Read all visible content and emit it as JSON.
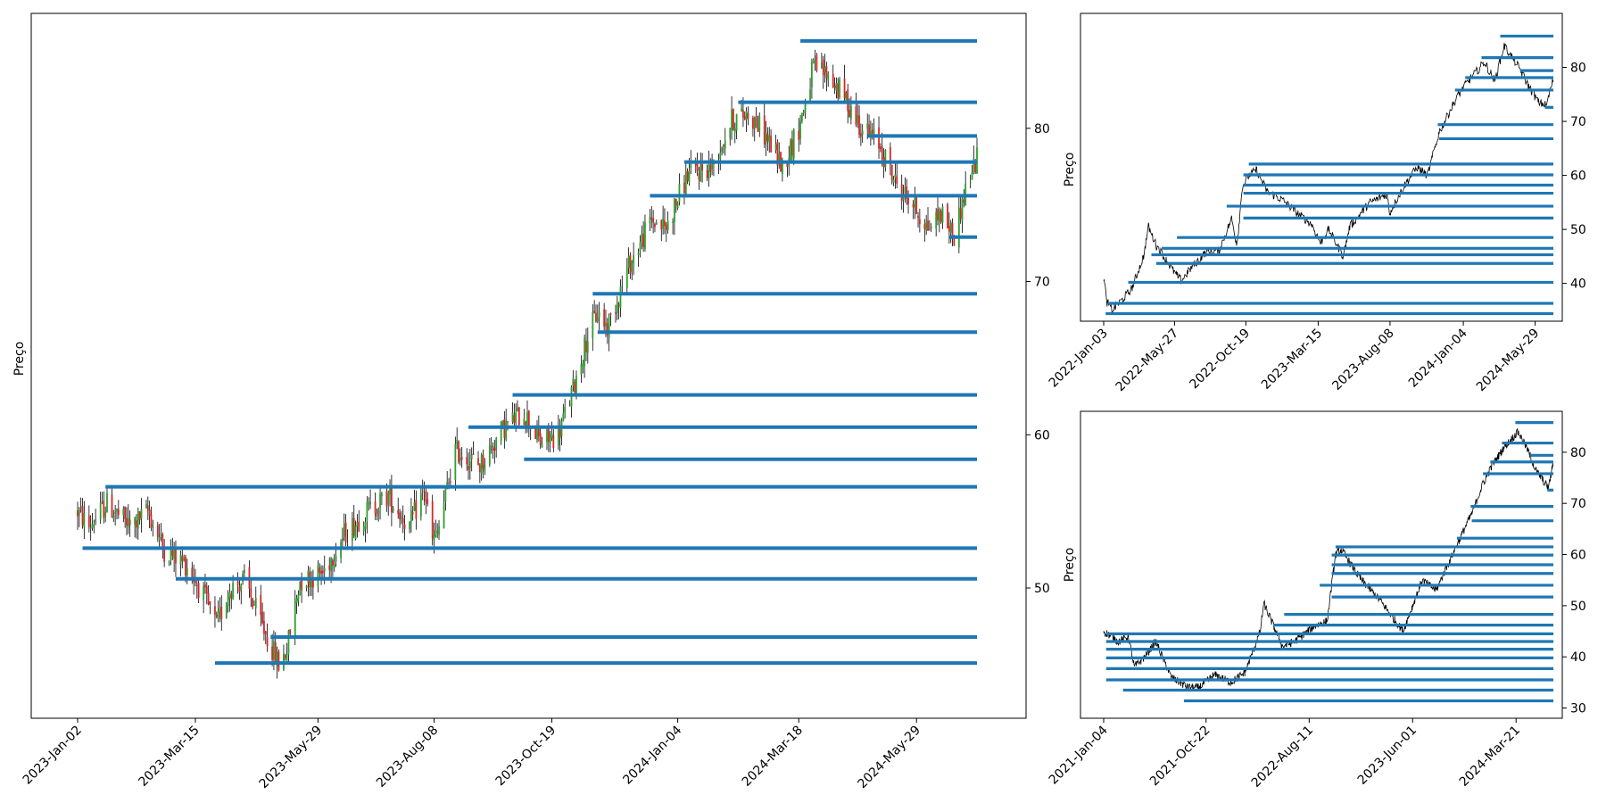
{
  "chart_data": [
    {
      "type": "candlestick",
      "ylabel": "Preço",
      "x_ticks": [
        "2023-Jan-02",
        "2023-Mar-15",
        "2023-May-29",
        "2023-Aug-08",
        "2023-Oct-19",
        "2024-Jan-04",
        "2024-Mar-18",
        "2024-May-29"
      ],
      "y_ticks": [
        50,
        60,
        70,
        80
      ],
      "ylim": [
        41.5,
        87.5
      ],
      "colors": {
        "up": "#2ca02c",
        "down": "#d62728",
        "levels": "#1f77b4"
      },
      "price_path": [
        [
          "2023-01-02",
          55.0
        ],
        [
          "2023-01-09",
          54.0
        ],
        [
          "2023-01-20",
          55.5
        ],
        [
          "2023-02-03",
          54.0
        ],
        [
          "2023-02-14",
          55.0
        ],
        [
          "2023-02-24",
          52.5
        ],
        [
          "2023-03-10",
          51.5
        ],
        [
          "2023-03-20",
          49.5
        ],
        [
          "2023-03-28",
          47.5
        ],
        [
          "2023-04-05",
          50.0
        ],
        [
          "2023-04-14",
          50.5
        ],
        [
          "2023-04-25",
          47.5
        ],
        [
          "2023-05-05",
          45.0
        ],
        [
          "2023-05-10",
          46.0
        ],
        [
          "2023-05-18",
          50.5
        ],
        [
          "2023-06-01",
          51.0
        ],
        [
          "2023-06-14",
          53.5
        ],
        [
          "2023-06-28",
          55.0
        ],
        [
          "2023-07-11",
          56.0
        ],
        [
          "2023-07-24",
          54.0
        ],
        [
          "2023-08-02",
          56.5
        ],
        [
          "2023-08-07",
          53.0
        ],
        [
          "2023-08-10",
          53.5
        ],
        [
          "2023-08-21",
          59.0
        ],
        [
          "2023-09-05",
          58.0
        ],
        [
          "2023-09-20",
          60.5
        ],
        [
          "2023-10-02",
          61.5
        ],
        [
          "2023-10-12",
          59.5
        ],
        [
          "2023-10-23",
          60.0
        ],
        [
          "2023-11-01",
          63.0
        ],
        [
          "2023-11-10",
          66.5
        ],
        [
          "2023-11-16",
          68.0
        ],
        [
          "2023-11-22",
          67.0
        ],
        [
          "2023-12-05",
          71.0
        ],
        [
          "2023-12-19",
          74.0
        ],
        [
          "2023-12-28",
          73.5
        ],
        [
          "2024-01-10",
          77.0
        ],
        [
          "2024-01-25",
          77.5
        ],
        [
          "2024-02-06",
          80.5
        ],
        [
          "2024-02-16",
          81.0
        ],
        [
          "2024-02-27",
          79.5
        ],
        [
          "2024-03-08",
          77.5
        ],
        [
          "2024-03-18",
          80.0
        ],
        [
          "2024-03-27",
          84.0
        ],
        [
          "2024-04-05",
          83.5
        ],
        [
          "2024-04-15",
          82.0
        ],
        [
          "2024-04-26",
          80.0
        ],
        [
          "2024-05-06",
          79.0
        ],
        [
          "2024-05-16",
          76.5
        ],
        [
          "2024-05-27",
          75.0
        ],
        [
          "2024-06-05",
          73.5
        ],
        [
          "2024-06-13",
          74.5
        ],
        [
          "2024-06-21",
          73.0
        ],
        [
          "2024-06-28",
          76.0
        ],
        [
          "2024-07-05",
          78.0
        ]
      ],
      "levels": [
        {
          "start": "2024-03-19",
          "price": 85.7
        },
        {
          "start": "2024-02-10",
          "price": 81.7
        },
        {
          "start": "2024-04-29",
          "price": 79.5
        },
        {
          "start": "2024-01-08",
          "price": 77.8
        },
        {
          "start": "2023-12-18",
          "price": 75.6
        },
        {
          "start": "2024-06-18",
          "price": 72.9
        },
        {
          "start": "2023-11-13",
          "price": 69.2
        },
        {
          "start": "2023-11-16",
          "price": 66.7
        },
        {
          "start": "2023-09-25",
          "price": 62.6
        },
        {
          "start": "2023-08-29",
          "price": 60.5
        },
        {
          "start": "2023-10-02",
          "price": 58.4
        },
        {
          "start": "2023-01-19",
          "price": 56.6
        },
        {
          "start": "2023-01-05",
          "price": 52.6
        },
        {
          "start": "2023-03-03",
          "price": 50.6
        },
        {
          "start": "2023-04-30",
          "price": 46.8
        },
        {
          "start": "2023-03-27",
          "price": 45.1
        }
      ]
    },
    {
      "type": "line",
      "ylabel": "Preço",
      "x_ticks": [
        "2022-Jan-03",
        "2022-May-27",
        "2022-Oct-19",
        "2023-Mar-15",
        "2023-Aug-08",
        "2024-Jan-04",
        "2024-May-29"
      ],
      "y_ticks": [
        40,
        50,
        60,
        70,
        80
      ],
      "ylim": [
        33,
        90
      ],
      "series_color": "#000000",
      "price_path": [
        [
          "2022-01-03",
          41.0
        ],
        [
          "2022-01-10",
          36.5
        ],
        [
          "2022-01-20",
          35.0
        ],
        [
          "2022-02-10",
          37.0
        ],
        [
          "2022-03-01",
          39.0
        ],
        [
          "2022-03-25",
          45.0
        ],
        [
          "2022-04-04",
          50.5
        ],
        [
          "2022-04-20",
          47.0
        ],
        [
          "2022-05-05",
          45.0
        ],
        [
          "2022-05-27",
          42.0
        ],
        [
          "2022-06-10",
          40.5
        ],
        [
          "2022-07-01",
          43.0
        ],
        [
          "2022-08-01",
          46.0
        ],
        [
          "2022-08-25",
          46.0
        ],
        [
          "2022-09-20",
          52.0
        ],
        [
          "2022-10-01",
          47.0
        ],
        [
          "2022-10-12",
          58.0
        ],
        [
          "2022-10-25",
          60.0
        ],
        [
          "2022-11-10",
          61.0
        ],
        [
          "2022-12-01",
          57.0
        ],
        [
          "2023-01-01",
          55.5
        ],
        [
          "2023-02-01",
          53.0
        ],
        [
          "2023-03-01",
          51.0
        ],
        [
          "2023-03-20",
          47.5
        ],
        [
          "2023-04-05",
          50.0
        ],
        [
          "2023-05-05",
          45.0
        ],
        [
          "2023-05-18",
          50.5
        ],
        [
          "2023-06-28",
          55.0
        ],
        [
          "2023-08-02",
          56.5
        ],
        [
          "2023-08-07",
          53.0
        ],
        [
          "2023-09-05",
          58.0
        ],
        [
          "2023-10-02",
          61.5
        ],
        [
          "2023-10-23",
          60.0
        ],
        [
          "2023-11-16",
          68.0
        ],
        [
          "2023-12-19",
          74.0
        ],
        [
          "2024-01-10",
          77.0
        ],
        [
          "2024-02-16",
          81.0
        ],
        [
          "2024-03-08",
          77.5
        ],
        [
          "2024-03-27",
          84.0
        ],
        [
          "2024-04-26",
          80.0
        ],
        [
          "2024-05-16",
          76.5
        ],
        [
          "2024-06-05",
          73.5
        ],
        [
          "2024-06-21",
          73.0
        ],
        [
          "2024-07-05",
          78.0
        ]
      ],
      "levels": [
        {
          "start": "2024-03-19",
          "price": 85.8
        },
        {
          "start": "2024-02-10",
          "price": 81.8
        },
        {
          "start": "2024-04-29",
          "price": 79.4
        },
        {
          "start": "2024-01-08",
          "price": 78.1
        },
        {
          "start": "2023-12-18",
          "price": 75.8
        },
        {
          "start": "2024-06-18",
          "price": 72.6
        },
        {
          "start": "2023-11-13",
          "price": 69.4
        },
        {
          "start": "2023-11-16",
          "price": 66.8
        },
        {
          "start": "2022-10-25",
          "price": 62.1
        },
        {
          "start": "2022-10-14",
          "price": 60.1
        },
        {
          "start": "2022-10-14",
          "price": 58.2
        },
        {
          "start": "2022-10-14",
          "price": 56.7
        },
        {
          "start": "2022-09-10",
          "price": 54.3
        },
        {
          "start": "2022-10-14",
          "price": 52.1
        },
        {
          "start": "2022-06-01",
          "price": 48.5
        },
        {
          "start": "2022-05-01",
          "price": 46.5
        },
        {
          "start": "2022-04-10",
          "price": 45.3
        },
        {
          "start": "2022-04-20",
          "price": 43.7
        },
        {
          "start": "2022-02-22",
          "price": 40.2
        },
        {
          "start": "2022-01-12",
          "price": 36.3
        },
        {
          "start": "2022-01-07",
          "price": 34.4
        }
      ]
    },
    {
      "type": "line",
      "ylabel": "Preço",
      "x_ticks": [
        "2021-Jan-04",
        "2021-Oct-22",
        "2022-Aug-11",
        "2023-Jun-01",
        "2024-Mar-21"
      ],
      "y_ticks": [
        30,
        40,
        50,
        60,
        70,
        80
      ],
      "ylim": [
        28,
        88
      ],
      "series_color": "#000000",
      "price_path": [
        [
          "2021-01-04",
          45.0
        ],
        [
          "2021-02-15",
          43.0
        ],
        [
          "2021-03-15",
          44.0
        ],
        [
          "2021-04-01",
          38.0
        ],
        [
          "2021-05-01",
          40.0
        ],
        [
          "2021-06-01",
          43.0
        ],
        [
          "2021-07-15",
          36.0
        ],
        [
          "2021-09-01",
          34.0
        ],
        [
          "2021-10-01",
          34.0
        ],
        [
          "2021-11-15",
          36.5
        ],
        [
          "2022-01-01",
          35.0
        ],
        [
          "2022-02-10",
          37.0
        ],
        [
          "2022-03-25",
          45.0
        ],
        [
          "2022-04-04",
          50.5
        ],
        [
          "2022-05-27",
          42.0
        ],
        [
          "2022-07-01",
          43.0
        ],
        [
          "2022-08-25",
          46.0
        ],
        [
          "2022-10-01",
          47.0
        ],
        [
          "2022-10-25",
          60.0
        ],
        [
          "2022-11-10",
          61.0
        ],
        [
          "2023-01-01",
          55.5
        ],
        [
          "2023-03-01",
          51.0
        ],
        [
          "2023-05-05",
          45.0
        ],
        [
          "2023-06-28",
          55.0
        ],
        [
          "2023-08-07",
          53.0
        ],
        [
          "2023-10-02",
          61.5
        ],
        [
          "2023-11-16",
          68.0
        ],
        [
          "2023-12-19",
          74.0
        ],
        [
          "2024-01-10",
          77.0
        ],
        [
          "2024-02-16",
          81.0
        ],
        [
          "2024-03-27",
          84.0
        ],
        [
          "2024-04-26",
          80.0
        ],
        [
          "2024-05-16",
          76.5
        ],
        [
          "2024-06-21",
          73.0
        ],
        [
          "2024-07-05",
          78.0
        ]
      ],
      "levels": [
        {
          "start": "2024-03-19",
          "price": 85.8
        },
        {
          "start": "2024-02-10",
          "price": 81.8
        },
        {
          "start": "2024-04-29",
          "price": 79.4
        },
        {
          "start": "2024-01-08",
          "price": 78.1
        },
        {
          "start": "2023-12-18",
          "price": 75.8
        },
        {
          "start": "2024-06-18",
          "price": 72.6
        },
        {
          "start": "2023-11-13",
          "price": 69.4
        },
        {
          "start": "2023-11-16",
          "price": 66.6
        },
        {
          "start": "2023-10-05",
          "price": 63.2
        },
        {
          "start": "2022-10-25",
          "price": 61.5
        },
        {
          "start": "2022-10-14",
          "price": 59.9
        },
        {
          "start": "2022-10-14",
          "price": 58.0
        },
        {
          "start": "2022-10-14",
          "price": 56.3
        },
        {
          "start": "2022-09-10",
          "price": 54.0
        },
        {
          "start": "2022-10-14",
          "price": 51.7
        },
        {
          "start": "2022-06-01",
          "price": 48.3
        },
        {
          "start": "2022-05-01",
          "price": 46.2
        },
        {
          "start": "2021-01-11",
          "price": 44.5
        },
        {
          "start": "2021-01-11",
          "price": 43.0
        },
        {
          "start": "2021-01-11",
          "price": 41.5
        },
        {
          "start": "2021-01-11",
          "price": 39.8
        },
        {
          "start": "2021-01-11",
          "price": 37.7
        },
        {
          "start": "2021-01-11",
          "price": 35.5
        },
        {
          "start": "2021-02-28",
          "price": 33.5
        },
        {
          "start": "2021-08-20",
          "price": 31.4
        }
      ]
    }
  ]
}
